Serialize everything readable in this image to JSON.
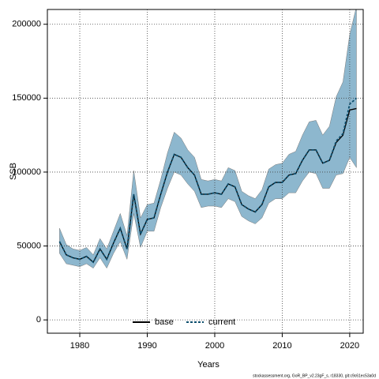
{
  "chart_data": {
    "type": "line",
    "xlabel": "Years",
    "ylabel": "SSB",
    "footnote": "stockassessment.org, GoR_BP_v2.23gF_s, r18330, git:c9c61ec53a0d",
    "x": [
      1977,
      1978,
      1979,
      1980,
      1981,
      1982,
      1983,
      1984,
      1985,
      1986,
      1987,
      1988,
      1989,
      1990,
      1991,
      1992,
      1993,
      1994,
      1995,
      1996,
      1997,
      1998,
      1999,
      2000,
      2001,
      2002,
      2003,
      2004,
      2005,
      2006,
      2007,
      2008,
      2009,
      2010,
      2011,
      2012,
      2013,
      2014,
      2015,
      2016,
      2017,
      2018,
      2019,
      2020,
      2021
    ],
    "series": [
      {
        "name": "base",
        "color": "#000000",
        "dash": false,
        "values": [
          53000,
          44000,
          42000,
          41000,
          43000,
          39000,
          48000,
          41000,
          52000,
          62000,
          48000,
          85000,
          58000,
          68000,
          69000,
          85000,
          100000,
          112000,
          110000,
          103000,
          98000,
          85000,
          85000,
          86000,
          85000,
          92000,
          90000,
          78000,
          75000,
          73000,
          78000,
          90000,
          93000,
          93000,
          98000,
          99000,
          108000,
          115000,
          115000,
          106000,
          108000,
          120000,
          125000,
          142000,
          143000
        ]
      },
      {
        "name": "current",
        "color": "#0d4f6e",
        "dash": true,
        "band_color": "#8db7ce",
        "values": [
          53000,
          44000,
          42000,
          41000,
          43000,
          39000,
          48000,
          41000,
          52000,
          62000,
          48000,
          85000,
          58000,
          68000,
          69000,
          85000,
          100000,
          112000,
          110000,
          103000,
          98000,
          85000,
          85000,
          86000,
          85000,
          92000,
          90000,
          78000,
          75000,
          73000,
          78000,
          90000,
          93000,
          93000,
          98000,
          99000,
          108000,
          115000,
          115000,
          106000,
          108000,
          121000,
          126000,
          146000,
          150000
        ],
        "lower": [
          45000,
          38000,
          37000,
          36000,
          38000,
          35000,
          42000,
          35000,
          45000,
          53000,
          41000,
          72000,
          49000,
          60000,
          60000,
          76000,
          89000,
          100000,
          98000,
          92000,
          87000,
          76000,
          77000,
          77000,
          76000,
          82000,
          80000,
          70000,
          67000,
          65000,
          69000,
          79000,
          82000,
          82000,
          86000,
          86000,
          94000,
          100000,
          99000,
          89000,
          89000,
          98000,
          99000,
          110000,
          103000
        ],
        "upper": [
          62000,
          51000,
          48000,
          47000,
          49000,
          44000,
          55000,
          48000,
          60000,
          72000,
          57000,
          101000,
          69000,
          78000,
          79000,
          95000,
          113000,
          127000,
          123000,
          115000,
          110000,
          95000,
          94000,
          95000,
          94000,
          103000,
          101000,
          87000,
          84000,
          82000,
          88000,
          102000,
          105000,
          106000,
          112000,
          114000,
          125000,
          134000,
          135000,
          125000,
          131000,
          151000,
          161000,
          193000,
          212000
        ]
      }
    ],
    "xlim": [
      1975.2,
      2022
    ],
    "xticks": [
      1980,
      1990,
      2000,
      2010,
      2020
    ],
    "ylim": [
      -9000,
      210000
    ],
    "yticks": [
      0,
      50000,
      100000,
      150000,
      200000
    ],
    "grid": true,
    "legend": "bottom"
  }
}
